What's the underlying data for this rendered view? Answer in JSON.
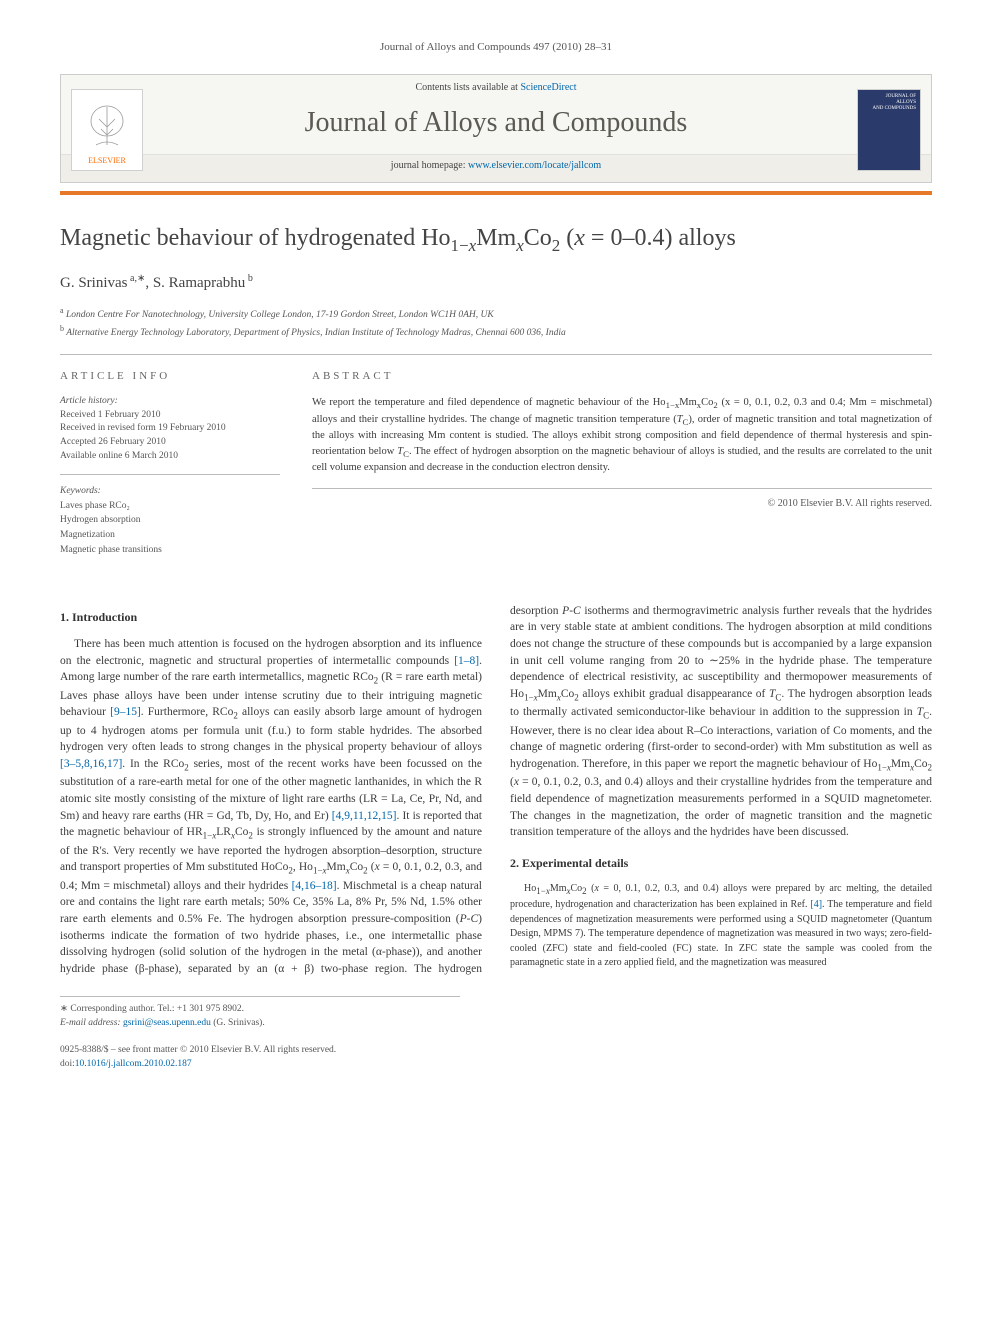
{
  "running_header": "Journal of Alloys and Compounds 497 (2010) 28–31",
  "masthead": {
    "contents_line_prefix": "Contents lists available at ",
    "contents_link": "ScienceDirect",
    "journal_title": "Journal of Alloys and Compounds",
    "homepage_prefix": "journal homepage: ",
    "homepage_link": "www.elsevier.com/locate/jallcom",
    "publisher_logo_text": "ELSEVIER",
    "cover_text_line1": "JOURNAL OF",
    "cover_text_line2": "ALLOYS",
    "cover_text_line3": "AND COMPOUNDS"
  },
  "article": {
    "title_html": "Magnetic behaviour of hydrogenated Ho<sub class='sub'>1−<span class='ital'>x</span></sub>Mm<sub class='sub'><span class='ital'>x</span></sub>Co<sub class='sub'>2</sub> (<span class='ital'>x</span> = 0–0.4) alloys",
    "authors_html": "G. Srinivas<sup> a,∗</sup>, S. Ramaprabhu<sup> b</sup>",
    "affiliations": {
      "a": "London Centre For Nanotechnology, University College London, 17-19 Gordon Street, London WC1H 0AH, UK",
      "b": "Alternative Energy Technology Laboratory, Department of Physics, Indian Institute of Technology Madras, Chennai 600 036, India"
    }
  },
  "article_info": {
    "heading": "article info",
    "history_label": "Article history:",
    "history": [
      "Received 1 February 2010",
      "Received in revised form 19 February 2010",
      "Accepted 26 February 2010",
      "Available online 6 March 2010"
    ],
    "keywords_label": "Keywords:",
    "keywords": [
      "Laves phase RCo₂",
      "Hydrogen absorption",
      "Magnetization",
      "Magnetic phase transitions"
    ]
  },
  "abstract": {
    "heading": "abstract",
    "body_html": "We report the temperature and filed dependence of magnetic behaviour of the Ho<sub class='sub'>1−<span class='ital'>x</span></sub>Mm<sub class='sub'><span class='ital'>x</span></sub>Co<sub class='sub'>2</sub> (<span class='ital'>x</span> = 0, 0.1, 0.2, 0.3 and 0.4; Mm = mischmetal) alloys and their crystalline hydrides. The change of magnetic transition temperature (<span class='tc-ital'>T</span><sub class='sub'>C</sub>), order of magnetic transition and total magnetization of the alloys with increasing Mm content is studied. The alloys exhibit strong composition and field dependence of thermal hysteresis and spin-reorientation below <span class='tc-ital'>T</span><sub class='sub'>C</sub>. The effect of hydrogen absorption on the magnetic behaviour of alloys is studied, and the results are correlated to the unit cell volume expansion and decrease in the conduction electron density.",
    "copyright": "© 2010 Elsevier B.V. All rights reserved."
  },
  "sections": {
    "s1_heading": "1. Introduction",
    "s1_p1_html": "There has been much attention is focused on the hydrogen absorption and its influence on the electronic, magnetic and structural properties of intermetallic compounds <a class='ref' href='#'>[1–8]</a>. Among large number of the rare earth intermetallics, magnetic RCo<sub class='sub'>2</sub> (R = rare earth metal) Laves phase alloys have been under intense scrutiny due to their intriguing magnetic behaviour <a class='ref' href='#'>[9–15]</a>. Furthermore, RCo<sub class='sub'>2</sub> alloys can easily absorb large amount of hydrogen up to 4 hydrogen atoms per formula unit (f.u.) to form stable hydrides. The absorbed hydrogen very often leads to strong changes in the physical property behaviour of alloys <a class='ref' href='#'>[3–5,8,16,17]</a>. In the RCo<sub class='sub'>2</sub> series, most of the recent works have been focussed on the substitution of a rare-earth metal for one of the other magnetic lanthanides, in which the R atomic site mostly consisting of the mixture of light rare earths (LR = La, Ce, Pr, Nd, and Sm) and heavy rare earths (HR = Gd, Tb, Dy, Ho, and Er) <a class='ref' href='#'>[4,9,11,12,15]</a>. It is reported that the magnetic behaviour of HR<sub class='sub'>1−<span class='ital'>x</span></sub>LR<sub class='sub'><span class='ital'>x</span></sub>Co<sub class='sub'>2</sub> is strongly influenced by the amount and nature of the R's. Very recently we have reported the hydrogen absorption–desorption, structure and transport properties of Mm substituted HoCo<sub class='sub'>2</sub>, Ho<sub class='sub'>1−<span class='ital'>x</span></sub>Mm<sub class='sub'><span class='ital'>x</span></sub>Co<sub class='sub'>2</sub> (<span class='ital'>x</span> = 0, 0.1, 0.2, 0.3, and 0.4; Mm = mischmetal) alloys and their hydrides <a class='ref' href='#'>[4,16–18]</a>. Mischmetal is a cheap natural ore and contains the light rare earth metals; 50% Ce, 35% La, 8% Pr, 5% Nd, 1.5% other rare earth elements and 0.5% Fe. The hydrogen absorption pressure-composition (<span class='ital'>P-C</span>) isotherms indicate the formation of two hydride phases, i.e., one intermetallic phase dissolving hydrogen (solid solution of the hydrogen in the metal (α-phase)), and another hydride phase (β-phase), separated by an (α + β) two-phase region. The hydrogen desorption <span class='ital'>P-C</span> isotherms and thermogravimetric analysis further reveals that the hydrides are in very stable state at ambient conditions. The hydrogen absorption at mild conditions does not change the structure of these compounds but is accompanied by a large expansion in unit cell volume ranging from 20 to ∼25% in the hydride phase. The temperature dependence of electrical resistivity, ac susceptibility and thermopower measurements of Ho<sub class='sub'>1−<span class='ital'>x</span></sub>Mm<sub class='sub'><span class='ital'>x</span></sub>Co<sub class='sub'>2</sub> alloys exhibit gradual disappearance of <span class='tc-ital'>T</span><sub class='sub'>C</sub>. The hydrogen absorption leads to thermally activated semiconductor-like behaviour in addition to the suppression in <span class='tc-ital'>T</span><sub class='sub'>C</sub>. However, there is no clear idea about R–Co interactions, variation of Co moments, and the change of magnetic ordering (first-order to second-order) with Mm substitution as well as hydrogenation. Therefore, in this paper we report the magnetic behaviour of Ho<sub class='sub'>1−<span class='ital'>x</span></sub>Mm<sub class='sub'><span class='ital'>x</span></sub>Co<sub class='sub'>2</sub> (<span class='ital'>x</span> = 0, 0.1, 0.2, 0.3, and 0.4) alloys and their crystalline hydrides from the temperature and field dependence of magnetization measurements performed in a SQUID magnetometer. The changes in the magnetization, the order of magnetic transition and the magnetic transition temperature of the alloys and the hydrides have been discussed.",
    "s2_heading": "2. Experimental details",
    "s2_p1_html": "Ho<sub class='sub'>1−<span class='ital'>x</span></sub>Mm<sub class='sub'><span class='ital'>x</span></sub>Co<sub class='sub'>2</sub> (<span class='ital'>x</span> = 0, 0.1, 0.2, 0.3, and 0.4) alloys were prepared by arc melting, the detailed procedure, hydrogenation and characterization has been explained in Ref. <a class='ref' href='#'>[4]</a>. The temperature and field dependences of magnetization measurements were performed using a SQUID magnetometer (Quantum Design, MPMS 7). The temperature dependence of magnetization was measured in two ways; zero-field-cooled (ZFC) state and field-cooled (FC) state. In ZFC state the sample was cooled from the paramagnetic state in a zero applied field, and the magnetization was measured"
  },
  "footnotes": {
    "corresponding_prefix": "∗ Corresponding author. Tel.: ",
    "tel": "+1 301 975 8902.",
    "email_label": "E-mail address: ",
    "email": "gsrini@seas.upenn.edu",
    "email_author": " (G. Srinivas)."
  },
  "footer": {
    "line1": "0925-8388/$ – see front matter © 2010 Elsevier B.V. All rights reserved.",
    "doi_prefix": "doi:",
    "doi": "10.1016/j.jallcom.2010.02.187"
  },
  "colors": {
    "accent_orange": "#e57928",
    "link_blue": "#0066aa",
    "text_main": "#3a3a3a",
    "rule_grey": "#bbbbbb",
    "masthead_bg": "#f6f6f3",
    "cover_blue": "#2a3a6a"
  }
}
